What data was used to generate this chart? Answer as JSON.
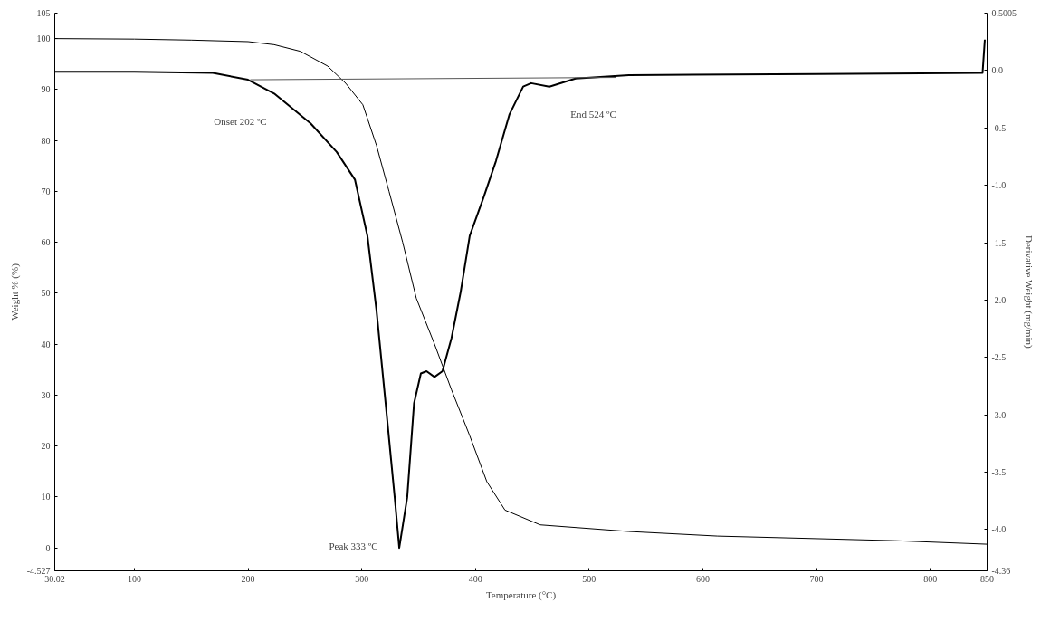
{
  "chart_data": {
    "type": "line",
    "xlabel": "Temperature (°C)",
    "ylabel": "Weight % (%)",
    "y2label": "Derivative Weight (mg/min)",
    "xlim": [
      30.02,
      850
    ],
    "ylim": [
      -4.527,
      105
    ],
    "y2lim": [
      -4.36,
      0.5005
    ],
    "xticks": [
      30.02,
      100,
      200,
      300,
      400,
      500,
      600,
      700,
      800,
      850
    ],
    "yticks": [
      -4.527,
      0,
      10,
      20,
      30,
      40,
      50,
      60,
      70,
      80,
      90,
      100,
      105
    ],
    "y2ticks": [
      -4.36,
      {
        "value": -4,
        "label": "-4.0"
      },
      -3.5,
      {
        "value": -3,
        "label": "-3.0"
      },
      -2.5,
      {
        "value": -2,
        "label": "-2.0"
      },
      -1.5,
      {
        "value": -1,
        "label": "-1.0"
      },
      -0.5,
      {
        "value": 0,
        "label": "0.0"
      },
      0.5005
    ],
    "grid": false,
    "marker": "none",
    "line_style": "solid",
    "series": [
      {
        "color": "#000000",
        "x": [
          30.02,
          100,
          150,
          200,
          223,
          246,
          270,
          286,
          301,
          313,
          324,
          336,
          348,
          364,
          379,
          395,
          410,
          426,
          457,
          535,
          613,
          769,
          850
        ],
        "values": [
          100,
          99.9,
          99.7,
          99.4,
          98.8,
          97.5,
          94.6,
          91.2,
          87,
          79,
          70,
          60,
          49,
          40,
          31,
          22,
          13,
          7.4,
          4.5,
          3.2,
          2.3,
          1.4,
          0.7
        ]
      },
      {
        "color": "#000000",
        "axis": "y2",
        "x": [
          30.02,
          100,
          169,
          200,
          223,
          255,
          278,
          294,
          305,
          313,
          321,
          329,
          333,
          340,
          346,
          352,
          357,
          364,
          371,
          379,
          387,
          395,
          407,
          418,
          430,
          442,
          449,
          465,
          488,
          535,
          700,
          846,
          848
        ],
        "values": [
          -0.01,
          -0.01,
          -0.02,
          -0.08,
          -0.2,
          -0.46,
          -0.71,
          -0.95,
          -1.44,
          -2.09,
          -2.9,
          -3.72,
          -4.16,
          -3.72,
          -2.9,
          -2.64,
          -2.62,
          -2.67,
          -2.62,
          -2.33,
          -1.93,
          -1.44,
          -1.11,
          -0.79,
          -0.38,
          -0.14,
          -0.11,
          -0.14,
          -0.07,
          -0.04,
          -0.03,
          -0.02,
          0.27
        ]
      },
      {
        "color": "#555555",
        "axis": "y2",
        "x": [
          202,
          524
        ],
        "values": [
          -0.08,
          -0.06
        ]
      }
    ],
    "annotations": [
      "Onset 202 ºC",
      "Peak 333 ºC",
      "End 524 ºC"
    ]
  }
}
